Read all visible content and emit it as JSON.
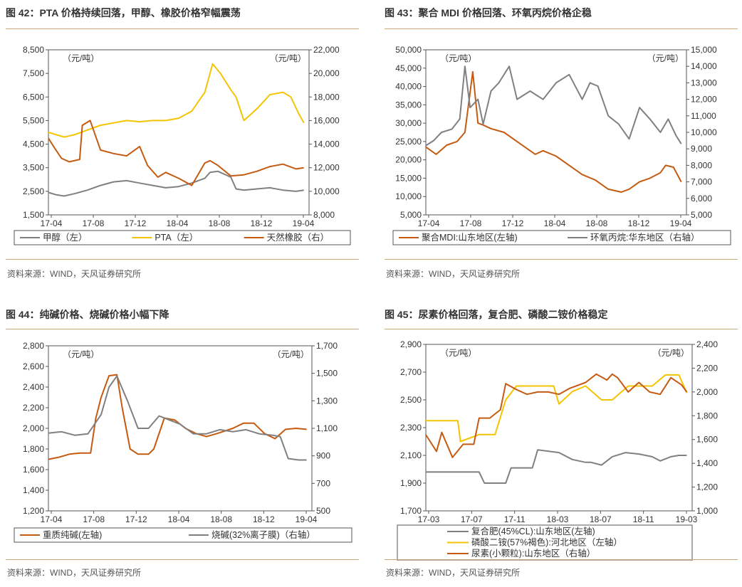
{
  "panels": [
    {
      "title": "图 42：PTA 价格持续回落，甲醇、橡胶价格窄幅震荡",
      "source": "资料来源：WIND，天风证券研究所"
    },
    {
      "title": "图 43：聚合 MDI 价格回落、环氧丙烷价格企稳",
      "source": "资料来源：WIND，天风证券研究所"
    },
    {
      "title": "图 44：纯碱价格、烧碱价格小幅下降",
      "source": "资料来源：WIND，天风证券研究所"
    },
    {
      "title": "图 45：尿素价格回落，复合肥、磷酸二铵价格稳定",
      "source": "资料来源：WIND，天风证券研究所"
    }
  ],
  "chart_data": [
    {
      "type": "line",
      "left_unit": "（元/吨）",
      "right_unit": "（元/吨）",
      "ylim_left": [
        1500,
        8500
      ],
      "yticks_left": [
        "1,500",
        "2,500",
        "3,500",
        "4,500",
        "5,500",
        "6,500",
        "7,500",
        "8,500"
      ],
      "ylim_right": [
        8000,
        22000
      ],
      "yticks_right": [
        "8,000",
        "10,000",
        "12,000",
        "14,000",
        "16,000",
        "18,000",
        "20,000",
        "22,000"
      ],
      "xticks": [
        "17-04",
        "17-08",
        "17-12",
        "18-04",
        "18-08",
        "18-12",
        "19-04"
      ],
      "series": [
        {
          "name": "甲醇（左）",
          "axis": "left",
          "color": "#808080",
          "x": [
            0,
            0.03,
            0.06,
            0.1,
            0.15,
            0.2,
            0.25,
            0.3,
            0.35,
            0.4,
            0.45,
            0.5,
            0.55,
            0.6,
            0.62,
            0.65,
            0.7,
            0.72,
            0.75,
            0.8,
            0.85,
            0.9,
            0.95,
            0.98
          ],
          "values": [
            2450,
            2350,
            2300,
            2400,
            2550,
            2750,
            2900,
            2950,
            2850,
            2750,
            2650,
            2700,
            2850,
            3050,
            3300,
            3350,
            3100,
            2600,
            2550,
            2600,
            2650,
            2550,
            2500,
            2550
          ]
        },
        {
          "name": "PTA（左）",
          "axis": "left",
          "color": "#f5c400",
          "x": [
            0,
            0.03,
            0.06,
            0.1,
            0.15,
            0.2,
            0.25,
            0.3,
            0.35,
            0.4,
            0.45,
            0.5,
            0.55,
            0.6,
            0.63,
            0.66,
            0.7,
            0.72,
            0.75,
            0.8,
            0.85,
            0.9,
            0.93,
            0.96,
            0.98
          ],
          "values": [
            5000,
            4900,
            4800,
            4900,
            5100,
            5300,
            5400,
            5500,
            5450,
            5500,
            5500,
            5600,
            5900,
            6700,
            7900,
            7500,
            6800,
            6500,
            5500,
            6000,
            6600,
            6700,
            6500,
            5800,
            5400
          ]
        },
        {
          "name": "天然橡胶（右）",
          "axis": "right",
          "color": "#c55a11",
          "x": [
            0,
            0.02,
            0.05,
            0.08,
            0.12,
            0.13,
            0.16,
            0.2,
            0.25,
            0.3,
            0.35,
            0.38,
            0.42,
            0.45,
            0.5,
            0.55,
            0.6,
            0.62,
            0.65,
            0.7,
            0.75,
            0.8,
            0.85,
            0.9,
            0.95,
            0.98
          ],
          "values": [
            14500,
            13800,
            12800,
            12500,
            12700,
            15600,
            16000,
            13500,
            13200,
            13000,
            13800,
            12200,
            11200,
            11600,
            11100,
            10500,
            12400,
            12600,
            12200,
            11300,
            11400,
            11700,
            12100,
            12300,
            11900,
            12000
          ]
        }
      ]
    },
    {
      "type": "line",
      "left_unit": "（元/吨）",
      "right_unit": "（元/吨）",
      "ylim_left": [
        5000,
        50000
      ],
      "yticks_left": [
        "5,000",
        "10,000",
        "15,000",
        "20,000",
        "25,000",
        "30,000",
        "35,000",
        "40,000",
        "45,000",
        "50,000"
      ],
      "ylim_right": [
        5000,
        15000
      ],
      "yticks_right": [
        "5,000",
        "6,000",
        "7,000",
        "8,000",
        "9,000",
        "10,000",
        "11,000",
        "12,000",
        "13,000",
        "14,000",
        "15,000"
      ],
      "xticks": [
        "17-04",
        "17-08",
        "17-12",
        "18-04",
        "18-08",
        "18-12",
        "19-04"
      ],
      "series": [
        {
          "name": "聚合MDI:山东地区(左轴)",
          "axis": "left",
          "color": "#c55a11",
          "x": [
            0,
            0.04,
            0.08,
            0.12,
            0.15,
            0.18,
            0.2,
            0.22,
            0.25,
            0.3,
            0.35,
            0.4,
            0.42,
            0.45,
            0.5,
            0.55,
            0.6,
            0.65,
            0.7,
            0.75,
            0.78,
            0.82,
            0.86,
            0.9,
            0.92,
            0.95,
            0.98
          ],
          "values": [
            23500,
            21500,
            24000,
            25000,
            27500,
            44000,
            30000,
            29500,
            28500,
            27500,
            25000,
            22500,
            21500,
            22500,
            21000,
            18500,
            16000,
            14500,
            12000,
            11200,
            12000,
            14000,
            15000,
            16500,
            18500,
            18000,
            14000
          ]
        },
        {
          "name": "环氧丙烷:华东地区（右轴）",
          "axis": "right",
          "color": "#808080",
          "x": [
            0,
            0.03,
            0.06,
            0.1,
            0.13,
            0.15,
            0.17,
            0.2,
            0.22,
            0.25,
            0.28,
            0.32,
            0.35,
            0.4,
            0.45,
            0.5,
            0.55,
            0.6,
            0.63,
            0.66,
            0.7,
            0.74,
            0.78,
            0.82,
            0.86,
            0.9,
            0.93,
            0.96,
            0.98
          ],
          "values": [
            9200,
            9500,
            10000,
            10200,
            10800,
            14000,
            11500,
            12000,
            10500,
            12500,
            13000,
            14000,
            12000,
            12500,
            12000,
            13000,
            13500,
            12000,
            13000,
            12800,
            11000,
            10500,
            9600,
            11500,
            10800,
            10000,
            10800,
            9800,
            9300
          ]
        }
      ]
    },
    {
      "type": "line",
      "left_unit": "（元/吨）",
      "right_unit": "（元/吨）",
      "ylim_left": [
        1200,
        2800
      ],
      "yticks_left": [
        "1,200",
        "1,400",
        "1,600",
        "1,800",
        "2,000",
        "2,200",
        "2,400",
        "2,600",
        "2,800"
      ],
      "ylim_right": [
        500,
        1700
      ],
      "yticks_right": [
        "500",
        "700",
        "900",
        "1,100",
        "1,300",
        "1,500",
        "1,700"
      ],
      "xticks": [
        "17-04",
        "17-08",
        "17-12",
        "18-04",
        "18-08",
        "18-12",
        "19-04"
      ],
      "series": [
        {
          "name": "重质纯碱(左轴)",
          "axis": "left",
          "color": "#c55a11",
          "x": [
            0,
            0.04,
            0.08,
            0.12,
            0.16,
            0.18,
            0.2,
            0.23,
            0.26,
            0.28,
            0.31,
            0.34,
            0.38,
            0.4,
            0.44,
            0.48,
            0.52,
            0.56,
            0.6,
            0.64,
            0.7,
            0.74,
            0.78,
            0.82,
            0.86,
            0.9,
            0.94,
            0.98
          ],
          "values": [
            1700,
            1720,
            1750,
            1760,
            1760,
            2100,
            2300,
            2510,
            2520,
            2200,
            1800,
            1750,
            1750,
            1800,
            2100,
            2080,
            2000,
            1950,
            1920,
            1950,
            2000,
            2050,
            2050,
            1950,
            1900,
            1990,
            2000,
            1990
          ]
        },
        {
          "name": "烧碱(32%离子膜)（右轴）",
          "axis": "right",
          "color": "#808080",
          "x": [
            0,
            0.05,
            0.1,
            0.15,
            0.2,
            0.23,
            0.26,
            0.3,
            0.34,
            0.38,
            0.42,
            0.46,
            0.5,
            0.55,
            0.6,
            0.65,
            0.7,
            0.75,
            0.8,
            0.85,
            0.88,
            0.91,
            0.95,
            0.98
          ],
          "values": [
            1065,
            1075,
            1050,
            1060,
            1200,
            1400,
            1480,
            1300,
            1100,
            1100,
            1190,
            1160,
            1130,
            1060,
            1060,
            1090,
            1075,
            1090,
            1060,
            1050,
            1040,
            880,
            870,
            870
          ]
        }
      ]
    },
    {
      "type": "line",
      "left_unit": "（元/吨）",
      "right_unit": "（元/吨）",
      "ylim_left": [
        1700,
        2900
      ],
      "yticks_left": [
        "1,700",
        "1,900",
        "2,100",
        "2,300",
        "2,500",
        "2,700",
        "2,900"
      ],
      "ylim_right": [
        1000,
        2400
      ],
      "yticks_right": [
        "1,000",
        "1,200",
        "1,400",
        "1,600",
        "1,800",
        "2,000",
        "2,200",
        "2,400"
      ],
      "xticks": [
        "17-03",
        "17-07",
        "17-11",
        "18-03",
        "18-07",
        "18-11",
        "19-03"
      ],
      "series": [
        {
          "name": "复合肥(45%CL):山东地区(左轴)",
          "axis": "left",
          "color": "#808080",
          "x": [
            0,
            0.1,
            0.2,
            0.22,
            0.3,
            0.32,
            0.4,
            0.42,
            0.5,
            0.55,
            0.6,
            0.62,
            0.66,
            0.7,
            0.75,
            0.8,
            0.85,
            0.88,
            0.92,
            0.95,
            0.98
          ],
          "values": [
            1980,
            1980,
            1980,
            1900,
            1900,
            2010,
            2010,
            2140,
            2120,
            2070,
            2050,
            2050,
            2030,
            2090,
            2120,
            2110,
            2090,
            2060,
            2090,
            2100,
            2100
          ]
        },
        {
          "name": "磷酸二铵(57%褐色):河北地区（左轴）",
          "axis": "left",
          "color": "#f5c400",
          "x": [
            0,
            0.12,
            0.13,
            0.2,
            0.26,
            0.3,
            0.34,
            0.4,
            0.48,
            0.5,
            0.55,
            0.6,
            0.66,
            0.7,
            0.76,
            0.8,
            0.85,
            0.9,
            0.95,
            0.98
          ],
          "values": [
            2350,
            2350,
            2200,
            2250,
            2250,
            2500,
            2600,
            2600,
            2600,
            2470,
            2560,
            2600,
            2500,
            2500,
            2600,
            2600,
            2600,
            2680,
            2680,
            2550
          ]
        },
        {
          "name": "尿素(小颗粒):山东地区（右轴）",
          "axis": "right",
          "color": "#c55a11",
          "x": [
            0,
            0.04,
            0.06,
            0.1,
            0.14,
            0.18,
            0.2,
            0.24,
            0.28,
            0.3,
            0.34,
            0.38,
            0.42,
            0.46,
            0.5,
            0.54,
            0.6,
            0.64,
            0.68,
            0.7,
            0.72,
            0.76,
            0.8,
            0.84,
            0.88,
            0.92,
            0.96,
            0.98
          ],
          "values": [
            1640,
            1500,
            1660,
            1450,
            1560,
            1560,
            1780,
            1780,
            1850,
            2070,
            2020,
            1980,
            2000,
            2000,
            1980,
            2030,
            2080,
            2150,
            2100,
            2150,
            2120,
            2000,
            2080,
            2000,
            1980,
            2120,
            2060,
            2000
          ]
        }
      ]
    }
  ]
}
